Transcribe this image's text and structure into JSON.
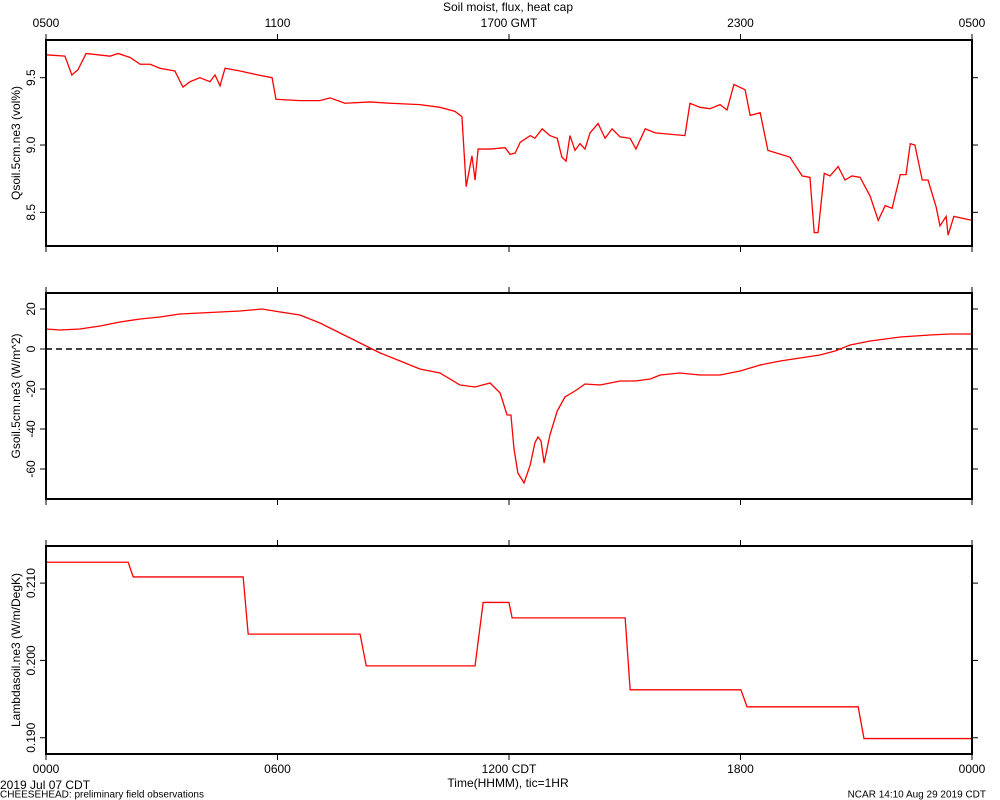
{
  "chart_data": [
    {
      "type": "line",
      "title": "Soil moist, flux, heat cap",
      "ylabel": "Qsoil.5cm.ne3 (vol%)",
      "color": "#ff0000",
      "xlim": [
        0,
        24
      ],
      "ylim": [
        8.25,
        9.78
      ],
      "yticks": [
        8.5,
        {
          "value": 9,
          "label": "9.0"
        },
        9.5
      ],
      "x2lim": [
        0,
        24
      ],
      "x2ticks": [
        {
          "value": 0,
          "label": "0500"
        },
        {
          "value": 6,
          "label": "1100"
        },
        {
          "value": 12,
          "label": "1700 GMT"
        },
        {
          "value": 18,
          "label": "2300"
        },
        {
          "value": 24,
          "label": "0500"
        }
      ],
      "x": [
        0,
        0.49,
        0.67,
        0.83,
        1.04,
        1.66,
        1.87,
        2.18,
        2.44,
        2.7,
        2.95,
        3.34,
        3.55,
        3.73,
        3.99,
        4.25,
        4.38,
        4.51,
        4.64,
        5.03,
        5.5,
        5.86,
        5.96,
        6.58,
        7.1,
        7.36,
        7.75,
        8.4,
        8.92,
        9.69,
        10.21,
        10.6,
        10.78,
        10.89,
        11.04,
        11.12,
        11.2,
        11.51,
        11.9,
        12.03,
        12.16,
        12.29,
        12.55,
        12.67,
        12.86,
        13.06,
        13.25,
        13.37,
        13.48,
        13.58,
        13.71,
        13.84,
        13.97,
        14.1,
        14.31,
        14.49,
        14.67,
        14.88,
        15.14,
        15.29,
        15.53,
        15.79,
        16.56,
        16.69,
        16.95,
        17.21,
        17.47,
        17.65,
        17.83,
        18.12,
        18.25,
        18.51,
        18.71,
        19.28,
        19.6,
        19.8,
        19.91,
        20.01,
        20.17,
        20.32,
        20.53,
        20.71,
        20.89,
        21.1,
        21.36,
        21.57,
        21.75,
        21.93,
        22.14,
        22.29,
        22.4,
        22.52,
        22.71,
        22.86,
        23.07,
        23.17,
        23.33,
        23.38,
        23.53,
        23.69,
        24
      ],
      "values": [
        9.67,
        9.66,
        9.52,
        9.56,
        9.68,
        9.66,
        9.68,
        9.65,
        9.6,
        9.6,
        9.57,
        9.55,
        9.43,
        9.47,
        9.5,
        9.47,
        9.52,
        9.44,
        9.57,
        9.55,
        9.52,
        9.5,
        9.34,
        9.33,
        9.33,
        9.35,
        9.31,
        9.32,
        9.31,
        9.3,
        9.28,
        9.25,
        9.21,
        8.69,
        8.92,
        8.74,
        8.97,
        8.97,
        8.98,
        8.93,
        8.94,
        9.02,
        9.07,
        9.05,
        9.12,
        9.07,
        9.05,
        8.91,
        8.88,
        9.07,
        8.96,
        9.01,
        8.97,
        9.09,
        9.16,
        9.05,
        9.12,
        9.06,
        9.05,
        8.97,
        9.12,
        9.09,
        9.07,
        9.31,
        9.28,
        9.27,
        9.3,
        9.26,
        9.45,
        9.41,
        9.22,
        9.24,
        8.96,
        8.91,
        8.77,
        8.76,
        8.35,
        8.35,
        8.79,
        8.77,
        8.84,
        8.74,
        8.77,
        8.76,
        8.62,
        8.44,
        8.55,
        8.53,
        8.78,
        8.78,
        9.01,
        9.0,
        8.74,
        8.74,
        8.54,
        8.4,
        8.47,
        8.33,
        8.47,
        8.46,
        8.44
      ]
    },
    {
      "type": "line",
      "ylabel": "Gsoil.5cm.ne3 (W/m^2)",
      "color": "#ff0000",
      "zero_line": true,
      "xlim": [
        0,
        24
      ],
      "ylim": [
        -75,
        28
      ],
      "yticks": [
        -60,
        -40,
        -20,
        0,
        20
      ],
      "x": [
        0,
        0.36,
        0.88,
        1.4,
        1.92,
        2.44,
        2.95,
        3.47,
        3.99,
        4.51,
        5.03,
        5.6,
        6.07,
        6.58,
        7.1,
        7.62,
        8.14,
        8.66,
        9.18,
        9.69,
        10.21,
        10.73,
        11.12,
        11.51,
        11.77,
        11.95,
        12.05,
        12.13,
        12.23,
        12.39,
        12.55,
        12.67,
        12.75,
        12.83,
        12.91,
        13.06,
        13.25,
        13.45,
        13.71,
        13.97,
        14.36,
        14.62,
        14.88,
        15.27,
        15.66,
        15.92,
        16.43,
        16.95,
        17.47,
        17.99,
        18.51,
        19.03,
        19.54,
        20.06,
        20.45,
        20.84,
        21.36,
        22.14,
        22.91,
        23.43,
        24
      ],
      "values": [
        10,
        9.5,
        10,
        11.5,
        13.5,
        15,
        16,
        17.5,
        18,
        18.5,
        19,
        20,
        18.5,
        17,
        13,
        8,
        3,
        -2,
        -6,
        -10,
        -12,
        -18,
        -19,
        -17,
        -22,
        -33,
        -33,
        -50,
        -62,
        -67,
        -58,
        -47,
        -44,
        -46,
        -57,
        -43,
        -31,
        -24,
        -21,
        -17.5,
        -18,
        -17,
        -16,
        -16,
        -15,
        -13,
        -12,
        -13,
        -13,
        -11,
        -8,
        -6,
        -4.5,
        -3,
        -1,
        2,
        4,
        6,
        7,
        7.5,
        7.5
      ]
    },
    {
      "type": "line",
      "ylabel": "Lambdasoil.ne3 (W/m/DegK)",
      "color": "#ff0000",
      "xlabel": "Time(HHMM), tic=1HR",
      "date_label": "2019 Jul 07 CDT",
      "xlim": [
        0,
        24
      ],
      "ylim": [
        0.1879,
        0.2148
      ],
      "xticks": [
        {
          "value": 0,
          "label": "0000"
        },
        {
          "value": 6,
          "label": "0600"
        },
        {
          "value": 12,
          "label": "1200 CDT"
        },
        {
          "value": 18,
          "label": "1800"
        },
        {
          "value": 24,
          "label": "0000"
        }
      ],
      "yticks": [
        {
          "value": 0.19,
          "label": "0.190"
        },
        {
          "value": 0.2,
          "label": "0.200"
        },
        {
          "value": 0.21,
          "label": "0.210"
        }
      ],
      "x": [
        0,
        2.13,
        2.26,
        5.11,
        5.24,
        8.14,
        8.3,
        11.12,
        11.33,
        12.0,
        12.08,
        15.01,
        15.14,
        18.01,
        18.17,
        21.05,
        21.2,
        24
      ],
      "values": [
        0.2127,
        0.2127,
        0.2108,
        0.2108,
        0.2034,
        0.2034,
        0.1993,
        0.1993,
        0.2075,
        0.2075,
        0.2055,
        0.2055,
        0.1962,
        0.1962,
        0.194,
        0.194,
        0.1899,
        0.1899
      ]
    }
  ],
  "footer": {
    "left": "CHEESEHEAD: preliminary field observations",
    "right": "NCAR 14:10 Aug 29 2019 CDT"
  }
}
